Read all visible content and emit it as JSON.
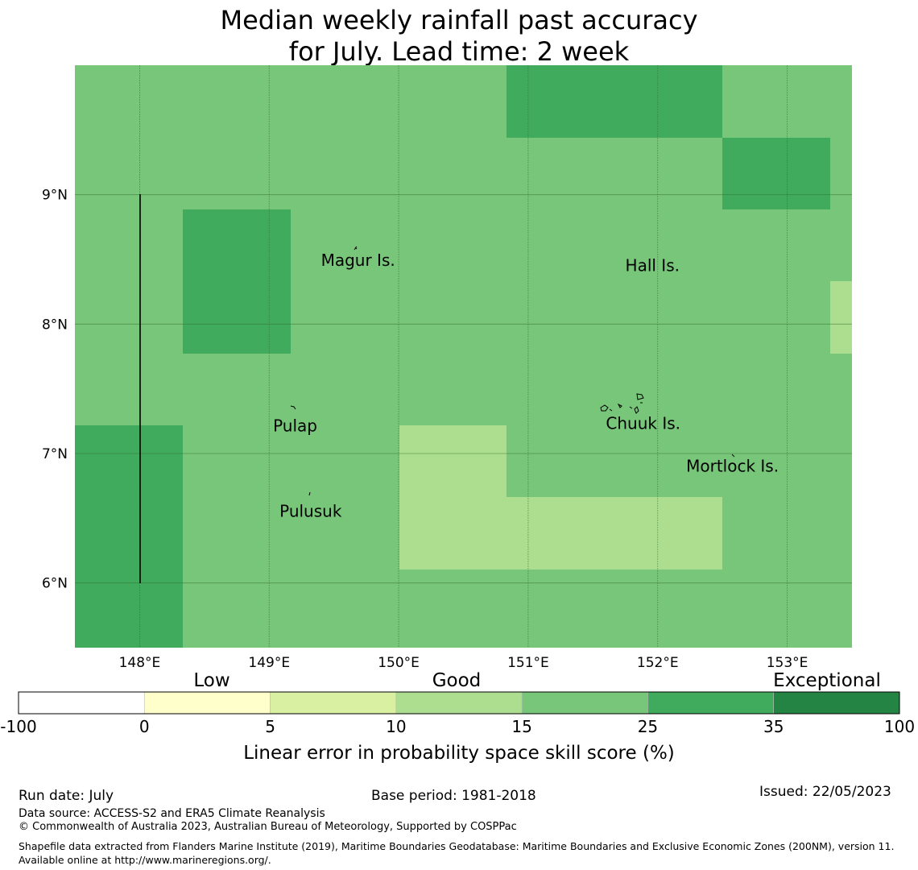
{
  "title": {
    "line1": "Median weekly rainfall past accuracy",
    "line2": "for July. Lead time: 2 week"
  },
  "map": {
    "lon_range": [
      147.5,
      153.5
    ],
    "lat_range": [
      5.5,
      10.0
    ],
    "x_ticks": [
      "148°E",
      "149°E",
      "150°E",
      "151°E",
      "152°E",
      "153°E"
    ],
    "y_ticks": [
      "9°N",
      "8°N",
      "7°N",
      "6°N"
    ],
    "grid": true,
    "colors": {
      "band_15_25": "#78c679",
      "band_25_35": "#41ab5d",
      "band_10_15": "#addd8e"
    },
    "place_labels": [
      {
        "name": "Magur Is.",
        "lon": 149.4,
        "lat": 8.5
      },
      {
        "name": "Hall Is.",
        "lon": 151.75,
        "lat": 8.46
      },
      {
        "name": "Pulap",
        "lon": 149.03,
        "lat": 7.22
      },
      {
        "name": "Chuuk Is.",
        "lon": 151.6,
        "lat": 7.24
      },
      {
        "name": "Mortlock Is.",
        "lon": 152.22,
        "lat": 6.91
      },
      {
        "name": "Pulusuk",
        "lon": 149.08,
        "lat": 6.56
      }
    ]
  },
  "colorbar": {
    "category_labels": [
      "Low",
      "Good",
      "Exceptional"
    ],
    "ticks": [
      "-100",
      "0",
      "5",
      "10",
      "15",
      "25",
      "35",
      "100"
    ],
    "colors": [
      "#ffffff",
      "#ffffcc",
      "#d9f0a3",
      "#addd8e",
      "#78c679",
      "#41ab5d",
      "#238443"
    ],
    "label": "Linear error in probability space skill score (%)"
  },
  "footer": {
    "run_date": "Run date: July",
    "base_period": "Base period: 1981-2018",
    "issued": "Issued: 22/05/2023",
    "data_source": "Data source: ACCESS-S2 and ERA5 Climate Reanalysis",
    "copyright": "© Commonwealth of Australia 2023, Australian Bureau of Meteorology, Supported by COSPPac",
    "shapefile": "Shapefile data extracted from Flanders Marine Institute (2019), Maritime Boundaries Geodatabase: Maritime Boundaries and Exclusive Economic Zones (200NM), version 11. Available online at http://www.marineregions.org/."
  }
}
